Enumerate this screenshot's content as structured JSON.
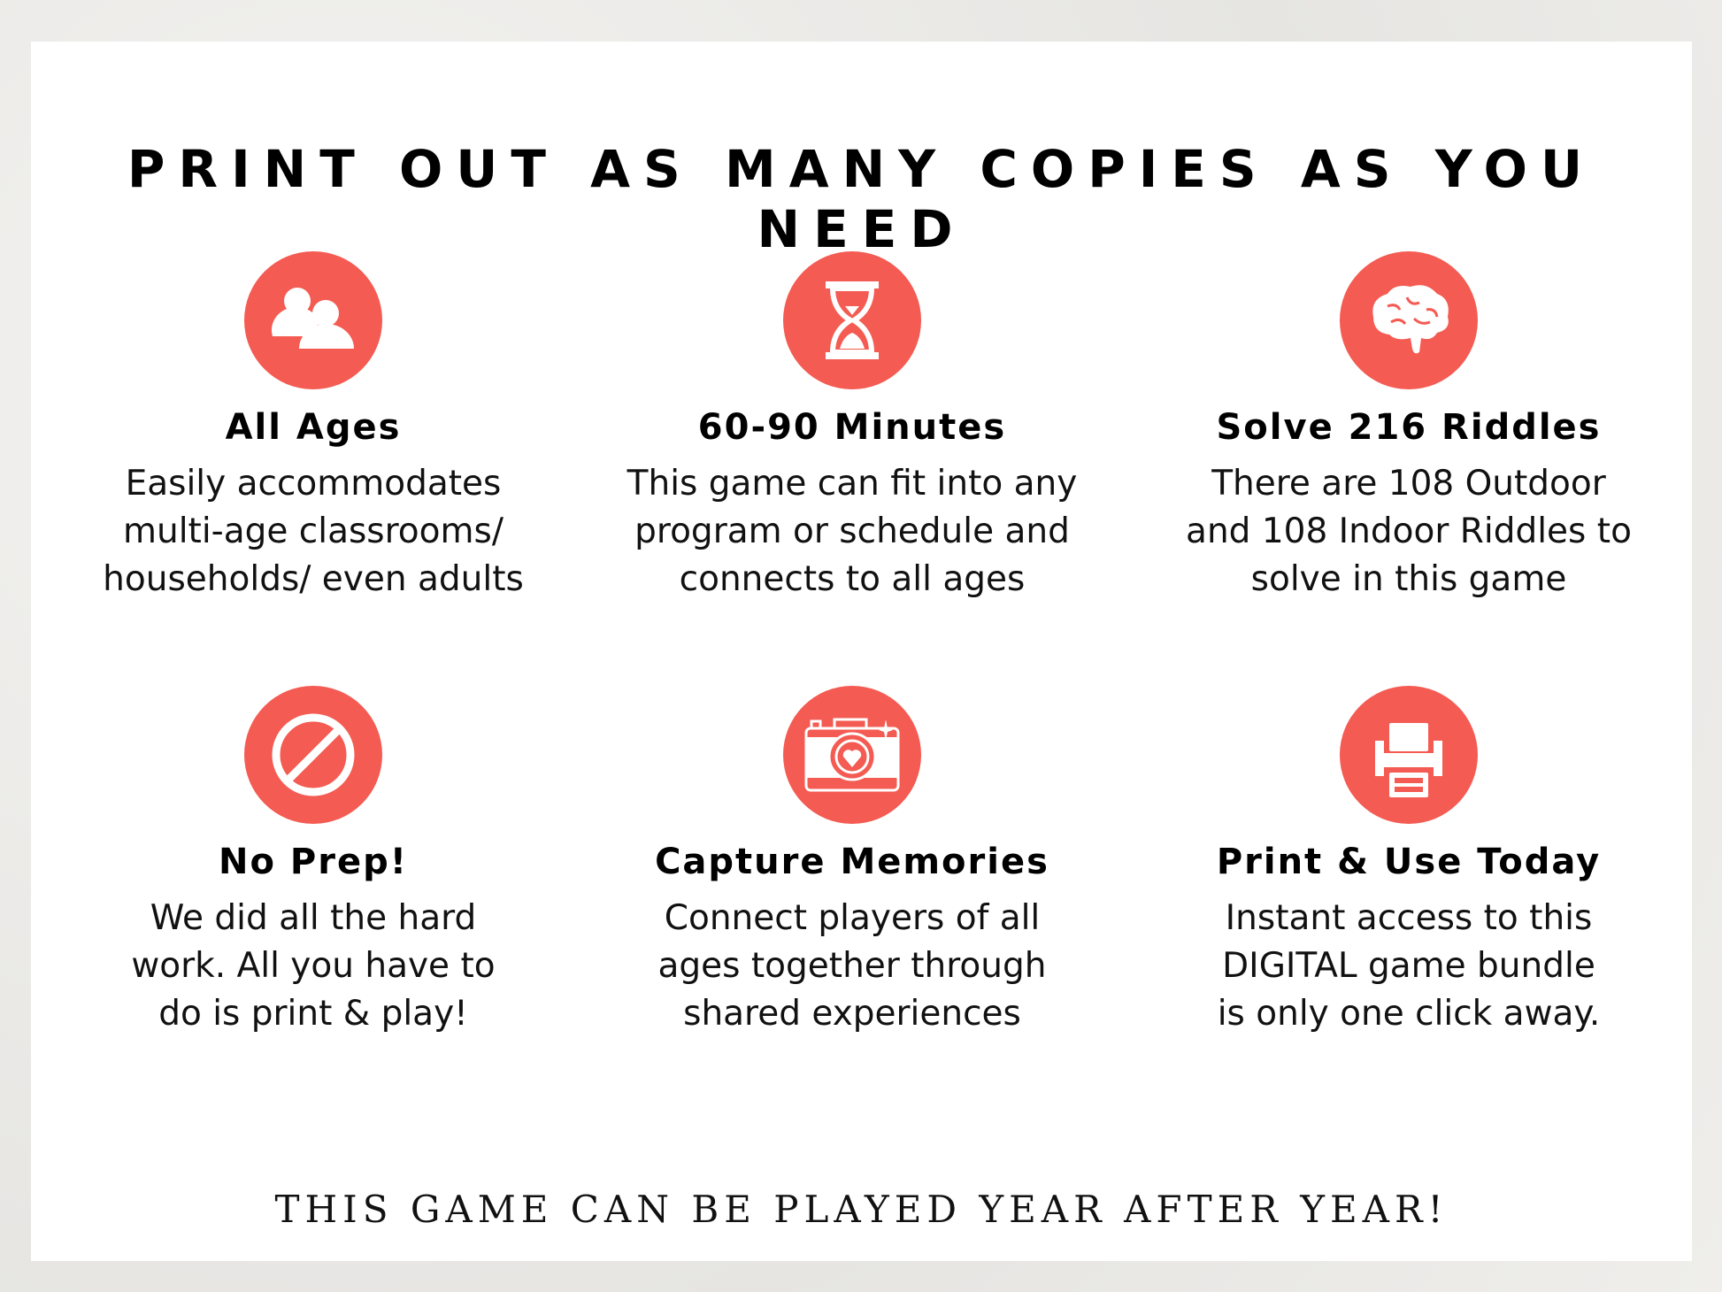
{
  "title": "PRINT OUT AS MANY COPIES AS YOU NEED",
  "accent_color": "#F45B52",
  "features": [
    {
      "icon": "people-icon",
      "heading": "All Ages",
      "body": "Easily accommodates\nmulti-age classrooms/\nhouseholds/ even adults"
    },
    {
      "icon": "hourglass-icon",
      "heading": "60-90 Minutes",
      "body": "This game can fit into any\nprogram or schedule and\nconnects to all ages"
    },
    {
      "icon": "brain-icon",
      "heading": "Solve 216 Riddles",
      "body": "There are 108 Outdoor\nand 108 Indoor Riddles to\nsolve in this game"
    },
    {
      "icon": "no-sign-icon",
      "heading": "No Prep!",
      "body": "We did all the hard\nwork. All you have to\ndo is print & play!"
    },
    {
      "icon": "camera-heart-icon",
      "heading": "Capture Memories",
      "body": "Connect players of all\nages together through\nshared experiences"
    },
    {
      "icon": "printer-icon",
      "heading": "Print & Use Today",
      "body": "Instant access to this\nDIGITAL game bundle\nis only one click away."
    }
  ],
  "footer": "THIS GAME CAN BE PLAYED YEAR AFTER YEAR!"
}
